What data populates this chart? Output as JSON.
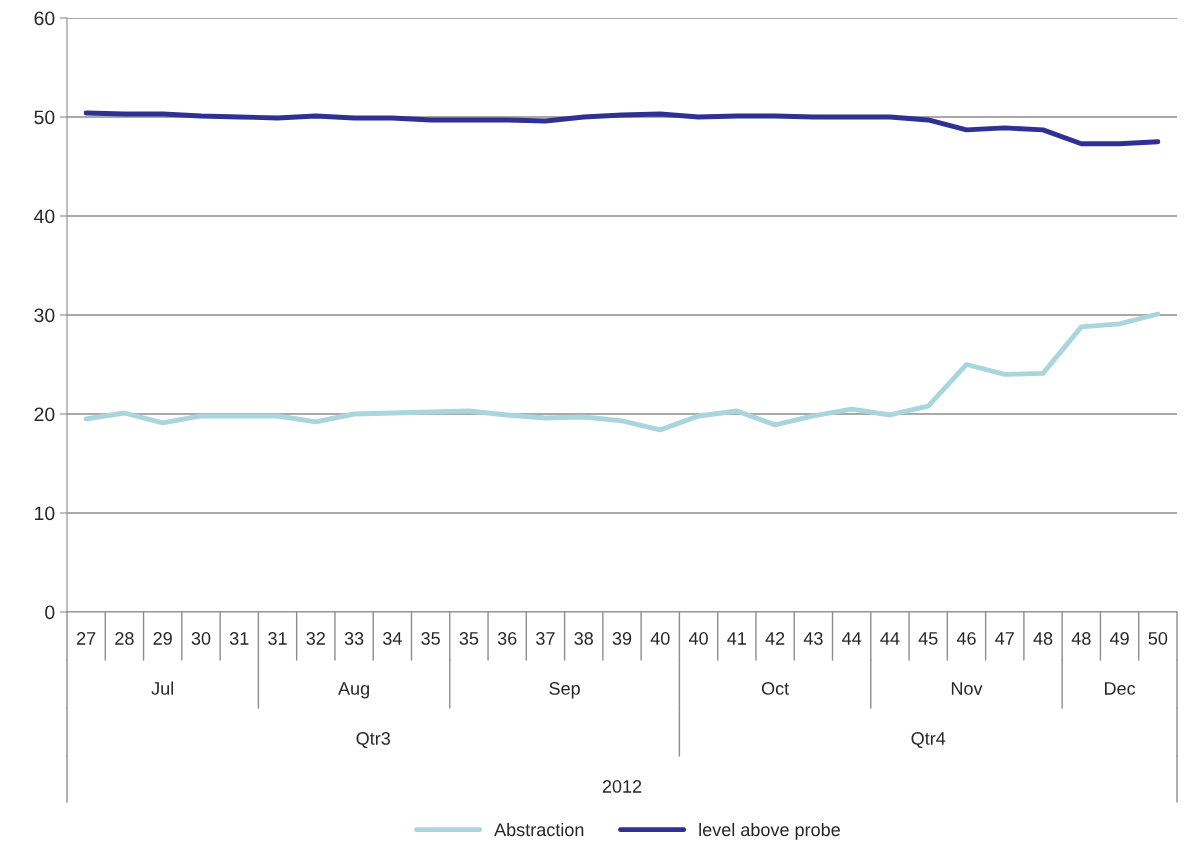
{
  "chart_data": {
    "type": "line",
    "categories": [
      "27",
      "28",
      "29",
      "30",
      "31",
      "31",
      "32",
      "33",
      "34",
      "35",
      "35",
      "36",
      "37",
      "38",
      "39",
      "40",
      "40",
      "41",
      "42",
      "43",
      "44",
      "44",
      "45",
      "46",
      "47",
      "48",
      "48",
      "49",
      "50"
    ],
    "series": [
      {
        "name": "Abstraction",
        "color": "#a9d5dc",
        "values": [
          19.5,
          20.1,
          19.1,
          19.8,
          19.8,
          19.8,
          19.2,
          20.0,
          20.1,
          20.2,
          20.3,
          19.9,
          19.6,
          19.7,
          19.3,
          18.4,
          19.8,
          20.3,
          18.9,
          19.8,
          20.5,
          19.9,
          20.8,
          25.0,
          24.0,
          24.1,
          28.8,
          29.1,
          30.1
        ]
      },
      {
        "name": "level above probe",
        "color": "#2e3192",
        "values": [
          50.4,
          50.3,
          50.3,
          50.1,
          50.0,
          49.9,
          50.1,
          49.9,
          49.9,
          49.7,
          49.7,
          49.7,
          49.6,
          50.0,
          50.2,
          50.3,
          50.0,
          50.1,
          50.1,
          50.0,
          50.0,
          50.0,
          49.7,
          48.7,
          48.9,
          48.7,
          47.3,
          47.3,
          47.5
        ]
      }
    ],
    "ylim": [
      0,
      60
    ],
    "yticks": [
      0,
      10,
      20,
      30,
      40,
      50,
      60
    ],
    "grid": "y",
    "legend": "bottom",
    "marker": "none",
    "line_style": "solid",
    "annotations": [
      "Jul",
      "Aug",
      "Sep",
      "Oct",
      "Nov",
      "Dec",
      "Qtr3",
      "Qtr4",
      "2012"
    ]
  }
}
